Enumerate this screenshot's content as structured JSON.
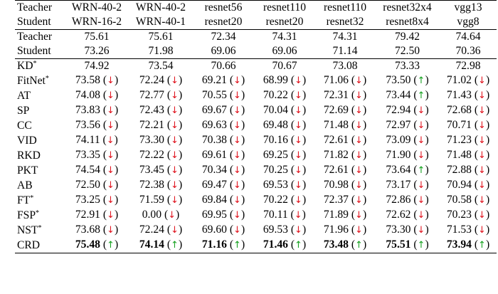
{
  "header": {
    "row_labels": [
      "Teacher",
      "Student"
    ],
    "teachers": [
      "WRN-40-2",
      "WRN-40-2",
      "resnet56",
      "resnet110",
      "resnet110",
      "resnet32x4",
      "vgg13"
    ],
    "students": [
      "WRN-16-2",
      "WRN-40-1",
      "resnet20",
      "resnet20",
      "resnet32",
      "resnet8x4",
      "vgg8"
    ]
  },
  "baselines": [
    {
      "label": "Teacher",
      "values": [
        "75.61",
        "75.61",
        "72.34",
        "74.31",
        "74.31",
        "79.42",
        "74.64"
      ]
    },
    {
      "label": "Student",
      "values": [
        "73.26",
        "71.98",
        "69.06",
        "69.06",
        "71.14",
        "72.50",
        "70.36"
      ]
    }
  ],
  "arrow_colors": {
    "down": "#e0141e",
    "up": "#14a01e"
  },
  "methods": [
    {
      "name": "KD",
      "star": "*",
      "bold": false,
      "cells": [
        {
          "v": "74.92",
          "a": ""
        },
        {
          "v": "73.54",
          "a": ""
        },
        {
          "v": "70.66",
          "a": ""
        },
        {
          "v": "70.67",
          "a": ""
        },
        {
          "v": "73.08",
          "a": ""
        },
        {
          "v": "73.33",
          "a": ""
        },
        {
          "v": "72.98",
          "a": ""
        }
      ]
    },
    {
      "name": "FitNet",
      "star": "*",
      "bold": false,
      "cells": [
        {
          "v": "73.58",
          "a": "down"
        },
        {
          "v": "72.24",
          "a": "down"
        },
        {
          "v": "69.21",
          "a": "down"
        },
        {
          "v": "68.99",
          "a": "down"
        },
        {
          "v": "71.06",
          "a": "down"
        },
        {
          "v": "73.50",
          "a": "up"
        },
        {
          "v": "71.02",
          "a": "down"
        }
      ]
    },
    {
      "name": "AT",
      "star": "",
      "bold": false,
      "cells": [
        {
          "v": "74.08",
          "a": "down"
        },
        {
          "v": "72.77",
          "a": "down"
        },
        {
          "v": "70.55",
          "a": "down"
        },
        {
          "v": "70.22",
          "a": "down"
        },
        {
          "v": "72.31",
          "a": "down"
        },
        {
          "v": "73.44",
          "a": "up"
        },
        {
          "v": "71.43",
          "a": "down"
        }
      ]
    },
    {
      "name": "SP",
      "star": "",
      "bold": false,
      "cells": [
        {
          "v": "73.83",
          "a": "down"
        },
        {
          "v": "72.43",
          "a": "down"
        },
        {
          "v": "69.67",
          "a": "down"
        },
        {
          "v": "70.04",
          "a": "down"
        },
        {
          "v": "72.69",
          "a": "down"
        },
        {
          "v": "72.94",
          "a": "down"
        },
        {
          "v": "72.68",
          "a": "down"
        }
      ]
    },
    {
      "name": "CC",
      "star": "",
      "bold": false,
      "cells": [
        {
          "v": "73.56",
          "a": "down"
        },
        {
          "v": "72.21",
          "a": "down"
        },
        {
          "v": "69.63",
          "a": "down"
        },
        {
          "v": "69.48",
          "a": "down"
        },
        {
          "v": "71.48",
          "a": "down"
        },
        {
          "v": "72.97",
          "a": "down"
        },
        {
          "v": "70.71",
          "a": "down"
        }
      ]
    },
    {
      "name": "VID",
      "star": "",
      "bold": false,
      "cells": [
        {
          "v": "74.11",
          "a": "down"
        },
        {
          "v": "73.30",
          "a": "down"
        },
        {
          "v": "70.38",
          "a": "down"
        },
        {
          "v": "70.16",
          "a": "down"
        },
        {
          "v": "72.61",
          "a": "down"
        },
        {
          "v": "73.09",
          "a": "down"
        },
        {
          "v": "71.23",
          "a": "down"
        }
      ]
    },
    {
      "name": "RKD",
      "star": "",
      "bold": false,
      "cells": [
        {
          "v": "73.35",
          "a": "down"
        },
        {
          "v": "72.22",
          "a": "down"
        },
        {
          "v": "69.61",
          "a": "down"
        },
        {
          "v": "69.25",
          "a": "down"
        },
        {
          "v": "71.82",
          "a": "down"
        },
        {
          "v": "71.90",
          "a": "down"
        },
        {
          "v": "71.48",
          "a": "down"
        }
      ]
    },
    {
      "name": "PKT",
      "star": "",
      "bold": false,
      "cells": [
        {
          "v": "74.54",
          "a": "down"
        },
        {
          "v": "73.45",
          "a": "down"
        },
        {
          "v": "70.34",
          "a": "down"
        },
        {
          "v": "70.25",
          "a": "down"
        },
        {
          "v": "72.61",
          "a": "down"
        },
        {
          "v": "73.64",
          "a": "up"
        },
        {
          "v": "72.88",
          "a": "down"
        }
      ]
    },
    {
      "name": "AB",
      "star": "",
      "bold": false,
      "cells": [
        {
          "v": "72.50",
          "a": "down"
        },
        {
          "v": "72.38",
          "a": "down"
        },
        {
          "v": "69.47",
          "a": "down"
        },
        {
          "v": "69.53",
          "a": "down"
        },
        {
          "v": "70.98",
          "a": "down"
        },
        {
          "v": "73.17",
          "a": "down"
        },
        {
          "v": "70.94",
          "a": "down"
        }
      ]
    },
    {
      "name": "FT",
      "star": "*",
      "bold": false,
      "cells": [
        {
          "v": "73.25",
          "a": "down"
        },
        {
          "v": "71.59",
          "a": "down"
        },
        {
          "v": "69.84",
          "a": "down"
        },
        {
          "v": "70.22",
          "a": "down"
        },
        {
          "v": "72.37",
          "a": "down"
        },
        {
          "v": "72.86",
          "a": "down"
        },
        {
          "v": "70.58",
          "a": "down"
        }
      ]
    },
    {
      "name": "FSP",
      "star": "*",
      "bold": false,
      "cells": [
        {
          "v": "72.91",
          "a": "down"
        },
        {
          "v": "0.00",
          "a": "down"
        },
        {
          "v": "69.95",
          "a": "down"
        },
        {
          "v": "70.11",
          "a": "down"
        },
        {
          "v": "71.89",
          "a": "down"
        },
        {
          "v": "72.62",
          "a": "down"
        },
        {
          "v": "70.23",
          "a": "down"
        }
      ]
    },
    {
      "name": "NST",
      "star": "*",
      "bold": false,
      "cells": [
        {
          "v": "73.68",
          "a": "down"
        },
        {
          "v": "72.24",
          "a": "down"
        },
        {
          "v": "69.60",
          "a": "down"
        },
        {
          "v": "69.53",
          "a": "down"
        },
        {
          "v": "71.96",
          "a": "down"
        },
        {
          "v": "73.30",
          "a": "down"
        },
        {
          "v": "71.53",
          "a": "down"
        }
      ]
    },
    {
      "name": "CRD",
      "star": "",
      "bold": true,
      "cells": [
        {
          "v": "75.48",
          "a": "up"
        },
        {
          "v": "74.14",
          "a": "up"
        },
        {
          "v": "71.16",
          "a": "up"
        },
        {
          "v": "71.46",
          "a": "up"
        },
        {
          "v": "73.48",
          "a": "up"
        },
        {
          "v": "75.51",
          "a": "up"
        },
        {
          "v": "73.94",
          "a": "up"
        }
      ]
    }
  ]
}
